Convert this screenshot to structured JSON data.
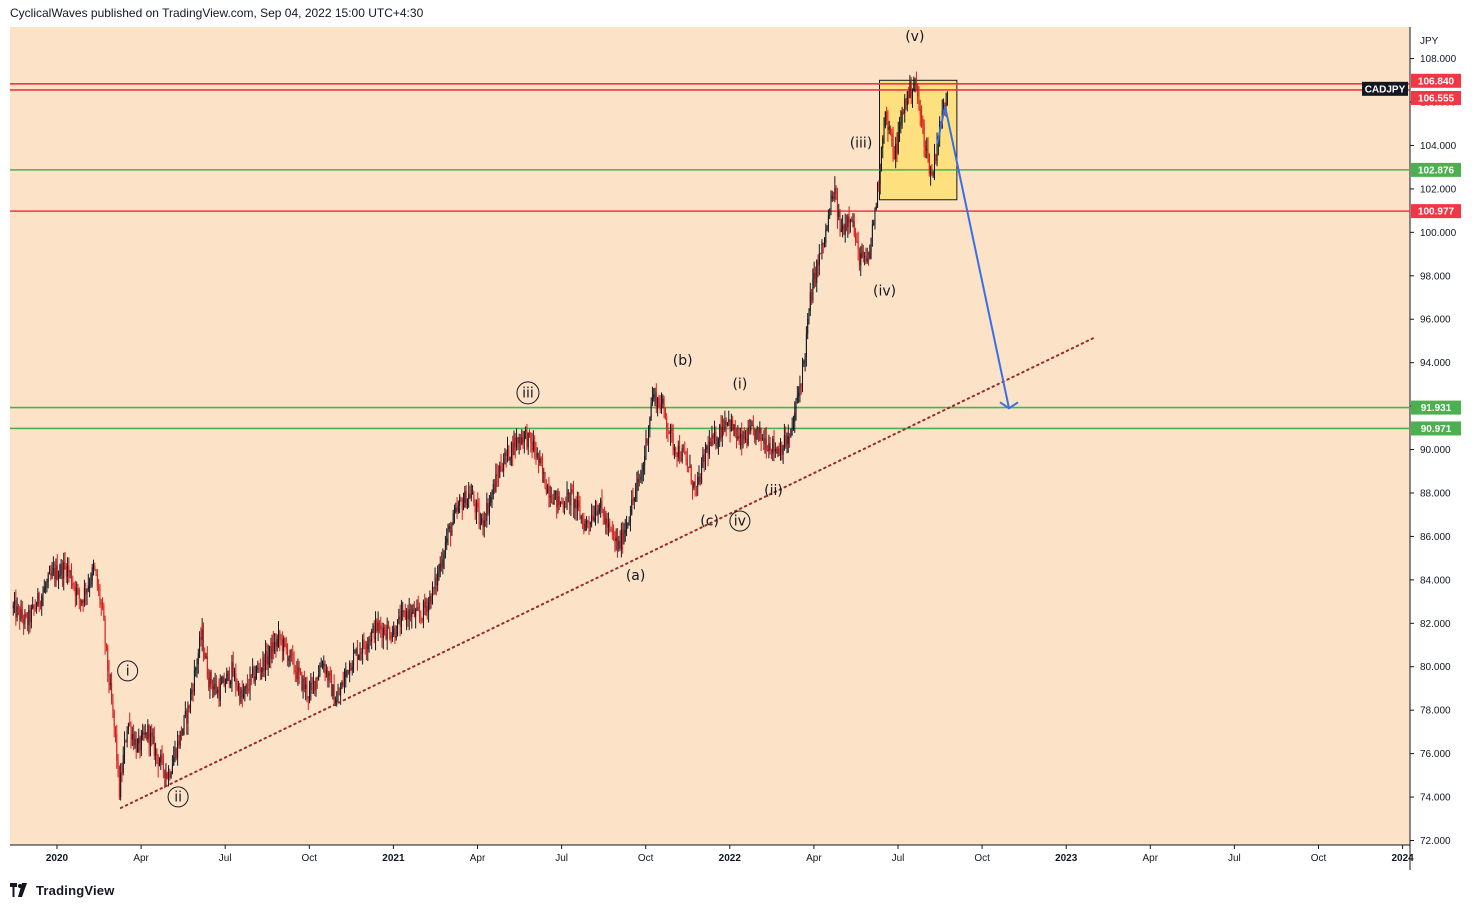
{
  "header": {
    "text": "CyclicalWaves published on TradingView.com, Sep 04, 2022 15:00 UTC+4:30"
  },
  "footer": {
    "brand": "TradingView"
  },
  "chart_data": {
    "type": "candlestick",
    "symbol": "CADJPY",
    "currency": "JPY",
    "y_ticks": [
      72,
      74,
      76,
      78,
      80,
      82,
      84,
      86,
      88,
      90,
      92,
      94,
      96,
      98,
      100,
      102,
      104,
      106,
      108
    ],
    "ylim": [
      72,
      110
    ],
    "x_ticks": [
      {
        "label": "2020",
        "t": 2020.0,
        "bold": true
      },
      {
        "label": "Apr",
        "t": 2020.25
      },
      {
        "label": "Jul",
        "t": 2020.5
      },
      {
        "label": "Oct",
        "t": 2020.75
      },
      {
        "label": "2021",
        "t": 2021.0,
        "bold": true
      },
      {
        "label": "Apr",
        "t": 2021.25
      },
      {
        "label": "Jul",
        "t": 2021.5
      },
      {
        "label": "Oct",
        "t": 2021.75
      },
      {
        "label": "2022",
        "t": 2022.0,
        "bold": true
      },
      {
        "label": "Apr",
        "t": 2022.25
      },
      {
        "label": "Jul",
        "t": 2022.5
      },
      {
        "label": "Oct",
        "t": 2022.75
      },
      {
        "label": "2023",
        "t": 2023.0,
        "bold": true
      },
      {
        "label": "Apr",
        "t": 2023.25
      },
      {
        "label": "Jul",
        "t": 2023.5
      },
      {
        "label": "Oct",
        "t": 2023.75
      },
      {
        "label": "2024",
        "t": 2024.0,
        "bold": true
      }
    ],
    "horizontal_levels": [
      {
        "value": 106.84,
        "label": "106.840",
        "color": "#f23645"
      },
      {
        "value": 106.555,
        "label": "106.555",
        "color": "#f23645"
      },
      {
        "value": 102.876,
        "label": "102.876",
        "color": "#4caf50"
      },
      {
        "value": 100.977,
        "label": "100.977",
        "color": "#f23645"
      },
      {
        "value": 91.931,
        "label": "91.931",
        "color": "#4caf50"
      },
      {
        "value": 90.971,
        "label": "90.971",
        "color": "#4caf50"
      }
    ],
    "price_path": [
      [
        2019.87,
        82.7
      ],
      [
        2019.91,
        82.0
      ],
      [
        2019.95,
        83.2
      ],
      [
        2019.99,
        84.3
      ],
      [
        2020.03,
        84.6
      ],
      [
        2020.07,
        83.0
      ],
      [
        2020.11,
        84.5
      ],
      [
        2020.135,
        82.5
      ],
      [
        2020.15,
        80.0
      ],
      [
        2020.175,
        76.5
      ],
      [
        2020.185,
        74.2
      ],
      [
        2020.21,
        77.5
      ],
      [
        2020.24,
        76.2
      ],
      [
        2020.27,
        77.0
      ],
      [
        2020.3,
        75.8
      ],
      [
        2020.33,
        75.0
      ],
      [
        2020.36,
        76.5
      ],
      [
        2020.39,
        78.0
      ],
      [
        2020.43,
        81.5
      ],
      [
        2020.45,
        79.5
      ],
      [
        2020.48,
        78.8
      ],
      [
        2020.52,
        79.8
      ],
      [
        2020.55,
        78.5
      ],
      [
        2020.58,
        79.5
      ],
      [
        2020.62,
        80.3
      ],
      [
        2020.66,
        81.3
      ],
      [
        2020.69,
        80.5
      ],
      [
        2020.72,
        79.5
      ],
      [
        2020.75,
        78.7
      ],
      [
        2020.79,
        80.3
      ],
      [
        2020.83,
        78.3
      ],
      [
        2020.87,
        80.2
      ],
      [
        2020.91,
        81.0
      ],
      [
        2020.95,
        81.8
      ],
      [
        2021.0,
        81.6
      ],
      [
        2021.04,
        82.5
      ],
      [
        2021.08,
        82.3
      ],
      [
        2021.12,
        83.5
      ],
      [
        2021.16,
        86.0
      ],
      [
        2021.2,
        87.5
      ],
      [
        2021.23,
        88.0
      ],
      [
        2021.26,
        86.5
      ],
      [
        2021.29,
        87.8
      ],
      [
        2021.32,
        89.3
      ],
      [
        2021.36,
        90.3
      ],
      [
        2021.39,
        90.7
      ],
      [
        2021.42,
        90.0
      ],
      [
        2021.45,
        88.5
      ],
      [
        2021.49,
        87.5
      ],
      [
        2021.53,
        87.8
      ],
      [
        2021.57,
        86.5
      ],
      [
        2021.61,
        87.5
      ],
      [
        2021.64,
        86.3
      ],
      [
        2021.67,
        85.5
      ],
      [
        2021.7,
        87.0
      ],
      [
        2021.74,
        89.0
      ],
      [
        2021.77,
        92.5
      ],
      [
        2021.8,
        92.0
      ],
      [
        2021.83,
        90.3
      ],
      [
        2021.87,
        89.5
      ],
      [
        2021.9,
        88.0
      ],
      [
        2021.93,
        90.0
      ],
      [
        2021.96,
        90.5
      ],
      [
        2021.99,
        91.5
      ],
      [
        2022.03,
        90.3
      ],
      [
        2022.07,
        90.8
      ],
      [
        2022.1,
        90.5
      ],
      [
        2022.14,
        90.0
      ],
      [
        2022.18,
        90.5
      ],
      [
        2022.22,
        94.0
      ],
      [
        2022.24,
        97.0
      ],
      [
        2022.26,
        98.5
      ],
      [
        2022.28,
        99.5
      ],
      [
        2022.31,
        102.0
      ],
      [
        2022.33,
        100.0
      ],
      [
        2022.36,
        101.0
      ],
      [
        2022.38,
        99.0
      ],
      [
        2022.41,
        98.5
      ],
      [
        2022.44,
        102.0
      ],
      [
        2022.46,
        105.5
      ],
      [
        2022.49,
        103.5
      ],
      [
        2022.52,
        106.0
      ],
      [
        2022.55,
        107.0
      ],
      [
        2022.57,
        105.0
      ],
      [
        2022.6,
        102.5
      ],
      [
        2022.62,
        104.5
      ],
      [
        2022.65,
        106.8
      ]
    ],
    "trendline": {
      "from": [
        2020.19,
        73.5
      ],
      "to": [
        2023.09,
        95.2
      ],
      "color": "#9c2a2a",
      "style": "dotted"
    },
    "projection_arrow": {
      "from": [
        2022.64,
        105.8
      ],
      "to": [
        2022.83,
        91.9
      ],
      "color": "#3a6ee8"
    },
    "highlight_box": {
      "t0": 2022.445,
      "t1": 2022.675,
      "p0": 101.5,
      "p1": 107.0,
      "fill": "#ffe066"
    },
    "wave_labels": [
      {
        "text": "i",
        "t": 2020.21,
        "p": 79.6,
        "circled": true
      },
      {
        "text": "ii",
        "t": 2020.36,
        "p": 73.8,
        "circled": true
      },
      {
        "text": "iii",
        "t": 2021.4,
        "p": 92.4,
        "circled": true
      },
      {
        "text": "(a)",
        "t": 2021.72,
        "p": 84.0,
        "circled": false
      },
      {
        "text": "(b)",
        "t": 2021.86,
        "p": 93.9,
        "circled": false
      },
      {
        "text": "(c)",
        "t": 2021.94,
        "p": 86.5,
        "circled": false
      },
      {
        "text": "iv",
        "t": 2022.03,
        "p": 86.5,
        "circled": true
      },
      {
        "text": "(i)",
        "t": 2022.03,
        "p": 92.8,
        "circled": false
      },
      {
        "text": "(ii)",
        "t": 2022.13,
        "p": 87.9,
        "circled": false
      },
      {
        "text": "(iii)",
        "t": 2022.39,
        "p": 103.9,
        "circled": false
      },
      {
        "text": "(iv)",
        "t": 2022.46,
        "p": 97.1,
        "circled": false
      },
      {
        "text": "(v)",
        "t": 2022.55,
        "p": 108.8,
        "circled": false
      }
    ],
    "symbol_tag": {
      "text": "CADJPY",
      "value": 106.7
    }
  }
}
